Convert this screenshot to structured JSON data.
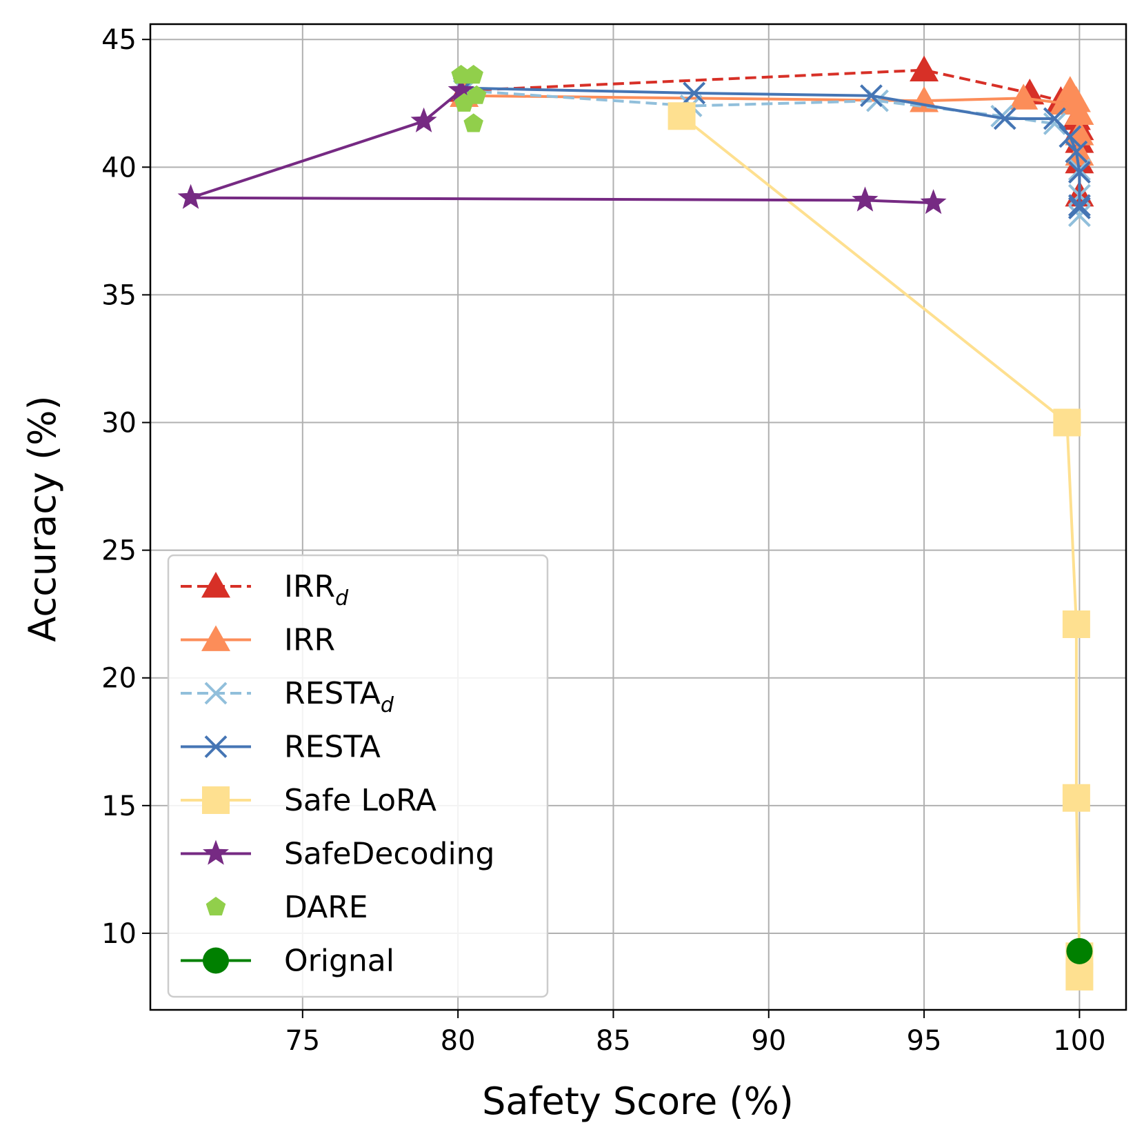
{
  "chart_data": {
    "type": "line",
    "xlabel": "Safety Score (%)",
    "ylabel": "Accuracy (%)",
    "xlim": [
      70.1,
      101.5
    ],
    "ylim": [
      7.0,
      45.6
    ],
    "xticks": [
      75,
      80,
      85,
      90,
      95,
      100
    ],
    "yticks": [
      10,
      15,
      20,
      25,
      30,
      35,
      40,
      45
    ],
    "grid": true,
    "legend_position": "lower-left",
    "series": [
      {
        "name": "IRR",
        "name_subscript": "d",
        "color": "#d73027",
        "dash": true,
        "marker": "triangle",
        "points": [
          [
            80.2,
            43.0
          ],
          [
            95.0,
            43.8
          ],
          [
            98.4,
            42.9
          ],
          [
            99.4,
            42.6
          ],
          [
            99.9,
            41.9
          ],
          [
            100.0,
            41.5
          ],
          [
            100.0,
            41.0
          ],
          [
            100.0,
            40.2
          ],
          [
            100.0,
            38.9
          ]
        ]
      },
      {
        "name": "IRR",
        "name_subscript": "",
        "color": "#fc8d59",
        "dash": false,
        "marker": "triangle",
        "points": [
          [
            80.2,
            42.8
          ],
          [
            95.0,
            42.6
          ],
          [
            98.2,
            42.7
          ],
          [
            99.5,
            42.5
          ],
          [
            99.7,
            43.0
          ],
          [
            99.9,
            42.6
          ],
          [
            100.0,
            42.1
          ],
          [
            100.0,
            41.3
          ],
          [
            100.0,
            40.5
          ]
        ]
      },
      {
        "name": "RESTA",
        "name_subscript": "d",
        "color": "#91bfdb",
        "dash": true,
        "marker": "x",
        "points": [
          [
            80.2,
            43.0
          ],
          [
            87.5,
            42.4
          ],
          [
            93.5,
            42.6
          ],
          [
            97.5,
            42.0
          ],
          [
            99.2,
            41.7
          ],
          [
            99.7,
            41.2
          ],
          [
            99.9,
            40.6
          ],
          [
            100.0,
            39.9
          ],
          [
            100.0,
            38.9
          ],
          [
            100.0,
            38.1
          ]
        ]
      },
      {
        "name": "RESTA",
        "name_subscript": "",
        "color": "#4575b4",
        "dash": false,
        "marker": "x",
        "points": [
          [
            80.2,
            43.1
          ],
          [
            87.6,
            42.9
          ],
          [
            93.3,
            42.8
          ],
          [
            97.6,
            41.9
          ],
          [
            99.2,
            41.9
          ],
          [
            99.7,
            41.2
          ],
          [
            99.9,
            40.6
          ],
          [
            100.0,
            39.8
          ],
          [
            100.0,
            38.5
          ],
          [
            100.0,
            38.4
          ]
        ]
      },
      {
        "name": "Safe LoRA",
        "name_subscript": "",
        "color": "#fee090",
        "dash": false,
        "marker": "square",
        "points": [
          [
            87.2,
            42.0
          ],
          [
            99.6,
            30.0
          ],
          [
            99.9,
            22.1
          ],
          [
            99.9,
            15.3
          ],
          [
            100.0,
            9.1
          ],
          [
            100.0,
            8.3
          ]
        ]
      },
      {
        "name": "SafeDecoding",
        "name_subscript": "",
        "color": "#762a83",
        "dash": false,
        "marker": "star",
        "points": [
          [
            95.3,
            38.6
          ],
          [
            93.1,
            38.7
          ],
          [
            71.4,
            38.8
          ],
          [
            78.9,
            41.8
          ],
          [
            80.1,
            43.0
          ]
        ]
      },
      {
        "name": "DARE",
        "name_subscript": "",
        "color": "#91cf4b",
        "dash": false,
        "marker": "pentagon",
        "line": false,
        "points": [
          [
            80.1,
            43.6
          ],
          [
            80.5,
            43.6
          ],
          [
            80.2,
            42.5
          ],
          [
            80.6,
            42.8
          ],
          [
            80.5,
            41.7
          ]
        ]
      },
      {
        "name": "Orignal",
        "name_subscript": "",
        "color": "#008000",
        "dash": false,
        "marker": "circle",
        "points": [
          [
            100.0,
            9.3
          ]
        ]
      }
    ]
  }
}
